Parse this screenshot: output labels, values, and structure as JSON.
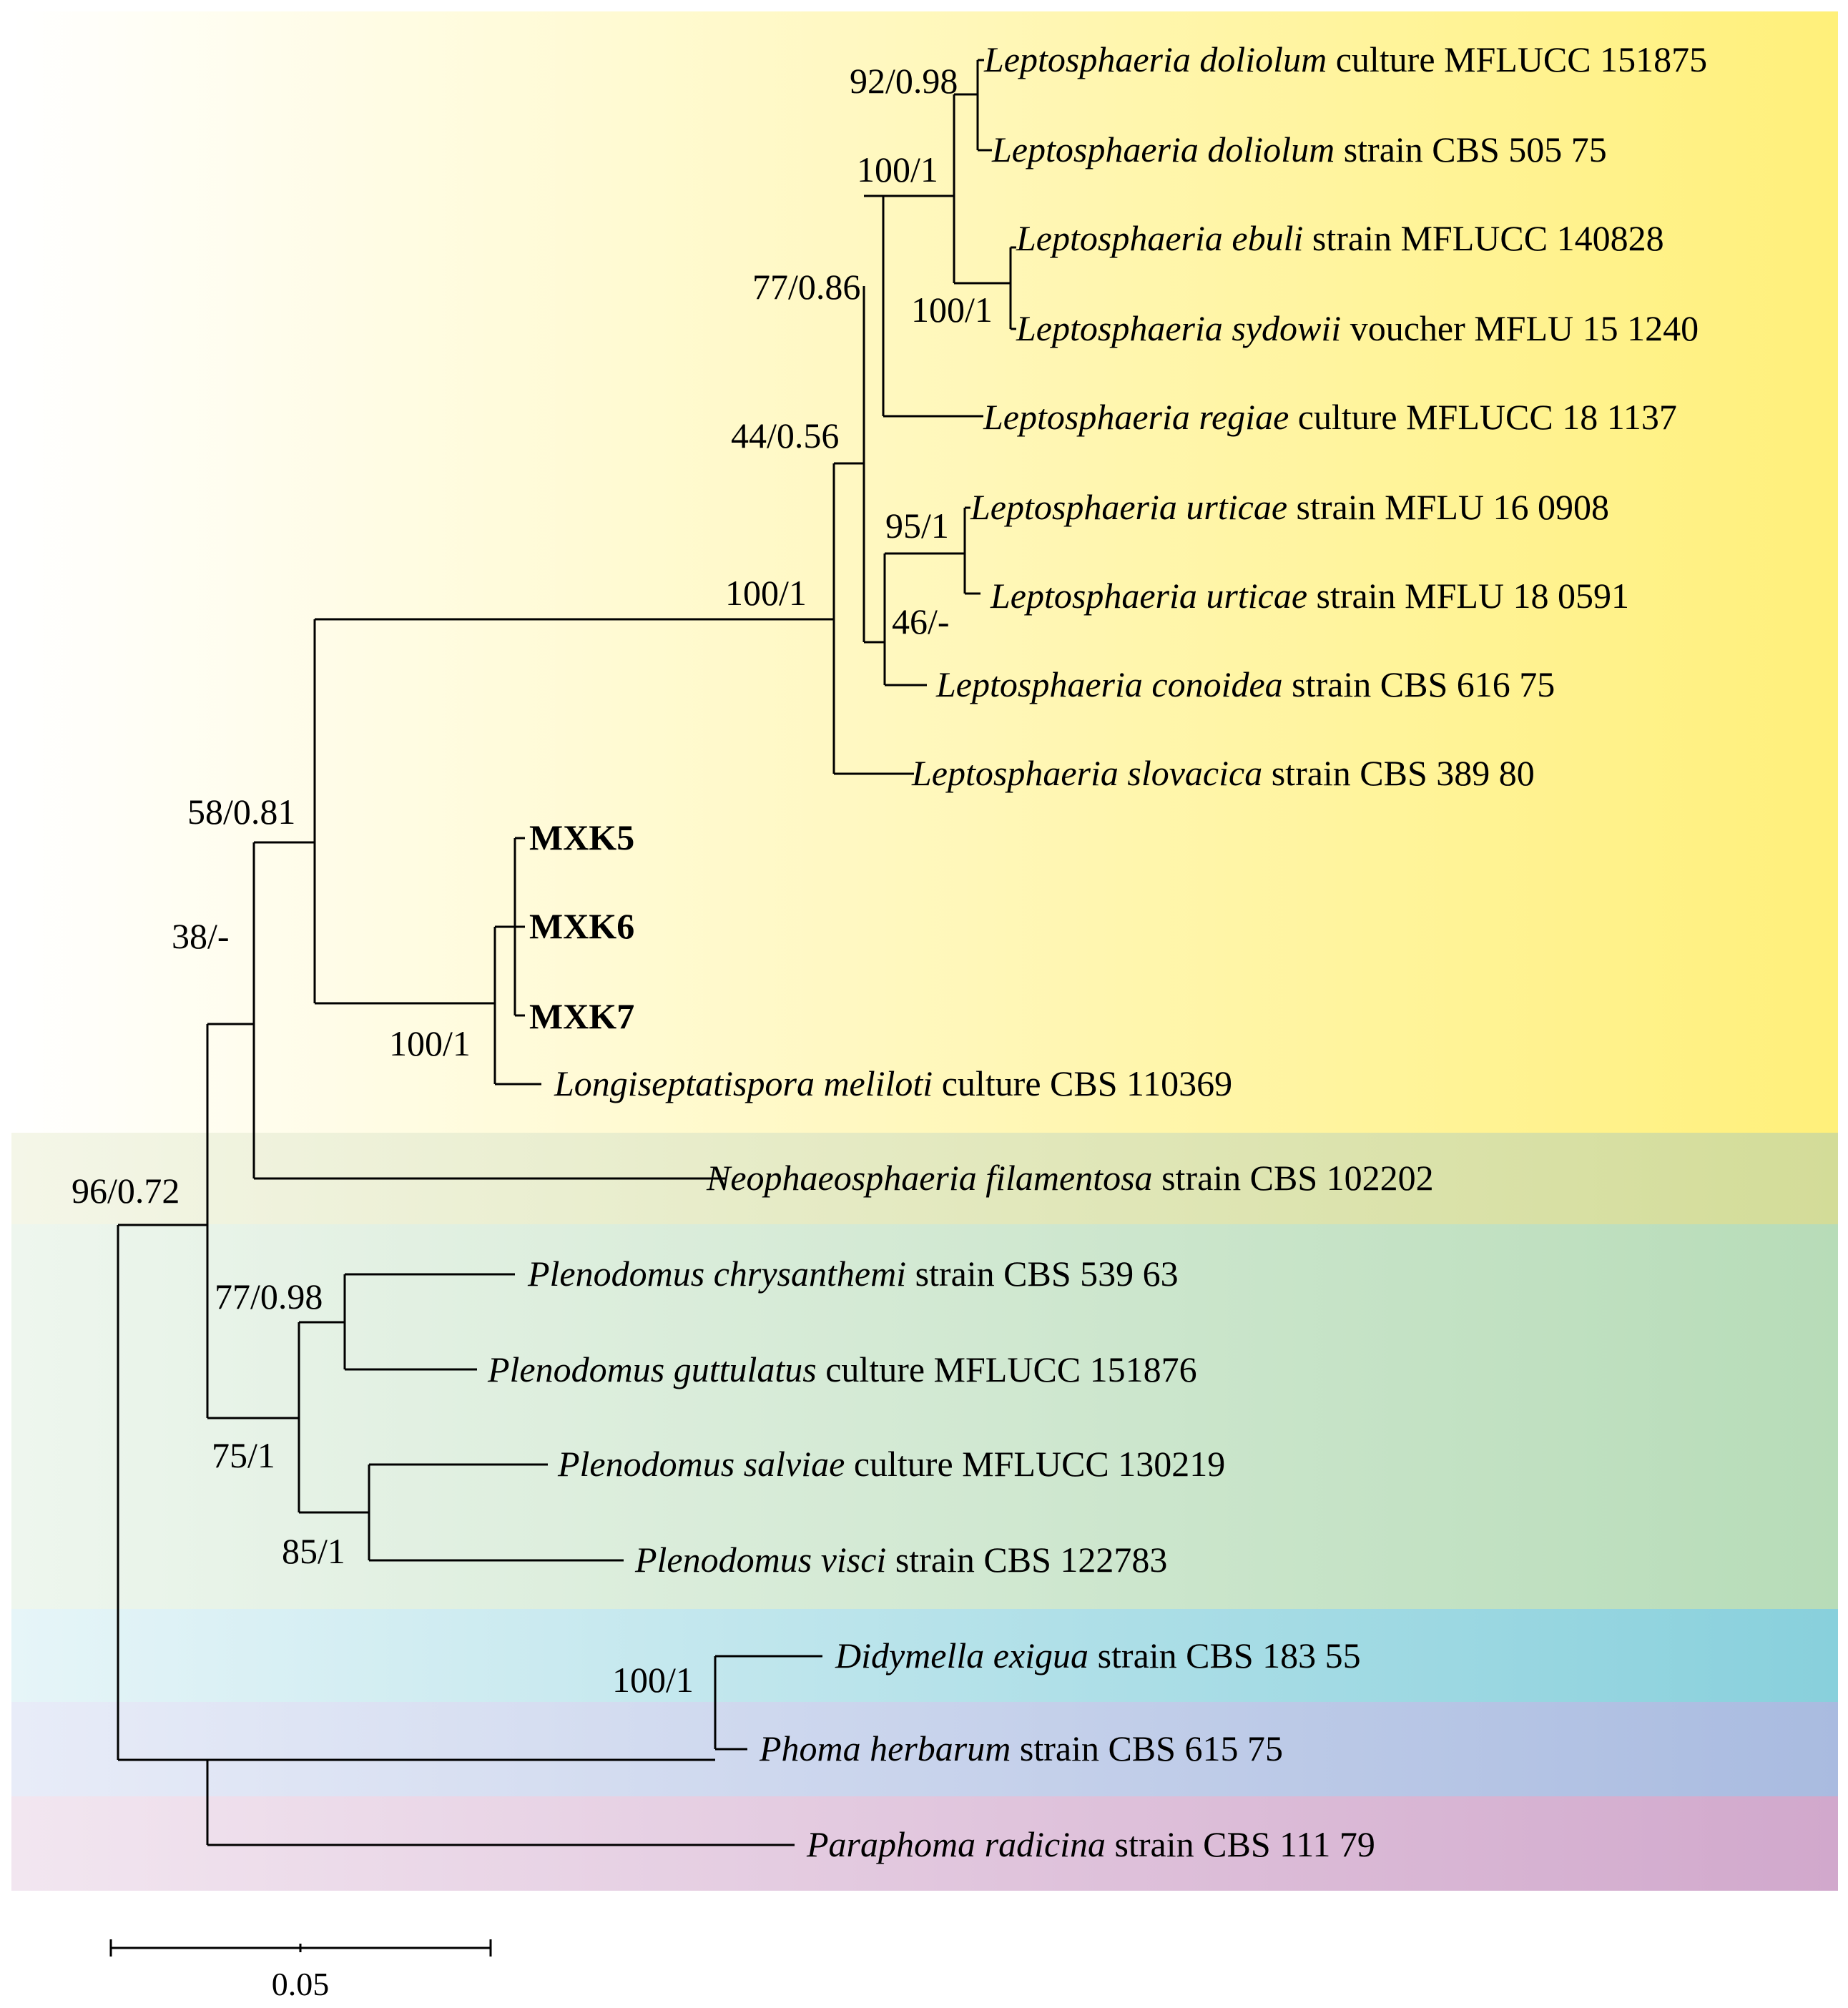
{
  "figure": {
    "bands": [
      {
        "key": "leptosphaeria",
        "color": "#FFF07A"
      },
      {
        "key": "neophaeosphaeria",
        "color": "#D3DC98"
      },
      {
        "key": "plenodomus",
        "color": "#B7DCB8"
      },
      {
        "key": "didymella",
        "color": "#88D0DC"
      },
      {
        "key": "phoma",
        "color": "#A9BBE0"
      },
      {
        "key": "paraphoma",
        "color": "#D1A8CC"
      }
    ],
    "taxa": [
      {
        "genus_species": "Leptosphaeria doliolum",
        "suffix": "culture MFLUCC 151875"
      },
      {
        "genus_species": "Leptosphaeria doliolum",
        "suffix": "strain CBS 505 75"
      },
      {
        "genus_species": "Leptosphaeria ebuli",
        "suffix": "strain MFLUCC 140828"
      },
      {
        "genus_species": "Leptosphaeria sydowii",
        "suffix": "voucher MFLU 15 1240"
      },
      {
        "genus_species": "Leptosphaeria regiae",
        "suffix": "culture MFLUCC 18 1137"
      },
      {
        "genus_species": "Leptosphaeria urticae",
        "suffix": "strain MFLU 16 0908"
      },
      {
        "genus_species": "Leptosphaeria urticae",
        "suffix": "strain MFLU 18 0591"
      },
      {
        "genus_species": "Leptosphaeria conoidea",
        "suffix": "strain CBS 616 75"
      },
      {
        "genus_species": "Leptosphaeria slovacica",
        "suffix": "strain CBS 389 80"
      },
      {
        "genus_species": "",
        "suffix": "MXK5"
      },
      {
        "genus_species": "",
        "suffix": "MXK6"
      },
      {
        "genus_species": "",
        "suffix": "MXK7"
      },
      {
        "genus_species": "Longiseptatispora meliloti",
        "suffix": "culture CBS 110369"
      },
      {
        "genus_species": "Neophaeosphaeria filamentosa",
        "suffix": "strain CBS 102202"
      },
      {
        "genus_species": "Plenodomus chrysanthemi",
        "suffix": "strain CBS 539 63"
      },
      {
        "genus_species": "Plenodomus guttulatus",
        "suffix": "culture MFLUCC 151876"
      },
      {
        "genus_species": "Plenodomus salviae",
        "suffix": "culture MFLUCC 130219"
      },
      {
        "genus_species": "Plenodomus visci",
        "suffix": "strain CBS 122783"
      },
      {
        "genus_species": "Didymella exigua",
        "suffix": "strain CBS 183 55"
      },
      {
        "genus_species": "Phoma herbarum",
        "suffix": "strain CBS 615 75"
      },
      {
        "genus_species": "Paraphoma radicina",
        "suffix": "strain CBS 111 79"
      }
    ],
    "support": [
      "92/0.98",
      "100/1",
      "77/0.86",
      "100/1",
      "44/0.56",
      "95/1",
      "46/-",
      "100/1",
      "58/0.81",
      "38/-",
      "100/1",
      "96/0.72",
      "77/0.98",
      "75/1",
      "85/1",
      "100/1"
    ],
    "scale_bar": {
      "label": "0.05"
    }
  }
}
